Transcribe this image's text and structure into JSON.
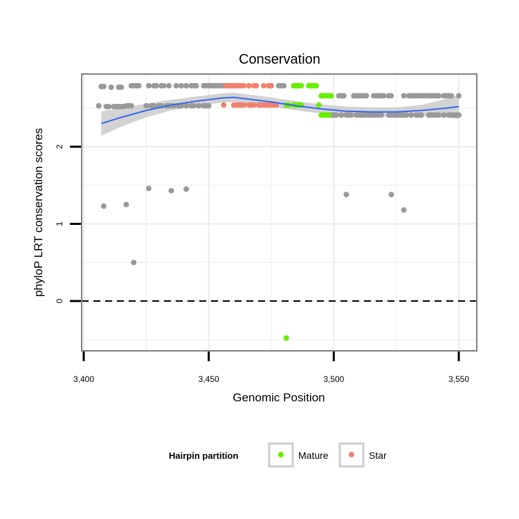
{
  "chart_data": {
    "type": "scatter",
    "title": "Conservation",
    "xlabel": "Genomic Position",
    "ylabel": "phyloP LRT conservation scores",
    "xlim": [
      3400,
      3555
    ],
    "ylim": [
      -0.62,
      3.0
    ],
    "x_ticks": [
      {
        "value": 3400,
        "label": "3,400"
      },
      {
        "value": 3450,
        "label": "3,450"
      },
      {
        "value": 3500,
        "label": "3,500"
      },
      {
        "value": 3550,
        "label": "3,550"
      }
    ],
    "y_ticks": [
      {
        "value": 0,
        "label": "0"
      },
      {
        "value": 1,
        "label": "1"
      },
      {
        "value": 2,
        "label": "2"
      }
    ],
    "grid": true,
    "reference_line": {
      "y": 0,
      "style": "dashed"
    },
    "legend": {
      "title": "Hairpin partition",
      "position": "bottom",
      "items": [
        {
          "label": "Mature",
          "color": "#66ee00"
        },
        {
          "label": "Star",
          "color": "#f08070"
        }
      ]
    },
    "colors": {
      "other": "#999999",
      "Mature": "#66ee00",
      "Star": "#f08070",
      "smooth": "#3366ee",
      "band": "#c8c8c8"
    },
    "series": [
      {
        "group": "other",
        "points": [
          [
            3407,
            2.78
          ],
          [
            3408,
            2.78
          ],
          [
            3411,
            2.77
          ],
          [
            3414,
            2.77
          ],
          [
            3415,
            2.77
          ],
          [
            3419,
            2.79
          ],
          [
            3420,
            2.79
          ],
          [
            3421,
            2.79
          ],
          [
            3422,
            2.79
          ],
          [
            3426,
            2.79
          ],
          [
            3428,
            2.79
          ],
          [
            3429,
            2.79
          ],
          [
            3431,
            2.79
          ],
          [
            3432,
            2.79
          ],
          [
            3434,
            2.79
          ],
          [
            3437,
            2.79
          ],
          [
            3439,
            2.79
          ],
          [
            3441,
            2.79
          ],
          [
            3443,
            2.79
          ],
          [
            3444,
            2.79
          ],
          [
            3445,
            2.79
          ],
          [
            3448,
            2.79
          ],
          [
            3449,
            2.79
          ],
          [
            3450,
            2.79
          ],
          [
            3451,
            2.79
          ],
          [
            3452,
            2.79
          ],
          [
            3453,
            2.79
          ],
          [
            3454,
            2.79
          ],
          [
            3455,
            2.79
          ],
          [
            3456,
            2.79
          ],
          [
            3478,
            2.79
          ],
          [
            3479,
            2.79
          ],
          [
            3480,
            2.79
          ],
          [
            3406,
            2.53
          ],
          [
            3409,
            2.52
          ],
          [
            3410,
            2.52
          ],
          [
            3412,
            2.52
          ],
          [
            3413,
            2.52
          ],
          [
            3414,
            2.52
          ],
          [
            3415,
            2.52
          ],
          [
            3416,
            2.52
          ],
          [
            3417,
            2.53
          ],
          [
            3418,
            2.53
          ],
          [
            3419,
            2.53
          ],
          [
            3425,
            2.53
          ],
          [
            3427,
            2.53
          ],
          [
            3428,
            2.53
          ],
          [
            3430,
            2.53
          ],
          [
            3431,
            2.53
          ],
          [
            3433,
            2.53
          ],
          [
            3434,
            2.53
          ],
          [
            3435,
            2.53
          ],
          [
            3436,
            2.53
          ],
          [
            3438,
            2.53
          ],
          [
            3439,
            2.53
          ],
          [
            3441,
            2.53
          ],
          [
            3443,
            2.53
          ],
          [
            3444,
            2.53
          ],
          [
            3446,
            2.53
          ],
          [
            3448,
            2.53
          ],
          [
            3449,
            2.53
          ],
          [
            3450,
            2.53
          ],
          [
            3502,
            2.66
          ],
          [
            3503,
            2.66
          ],
          [
            3504,
            2.66
          ],
          [
            3508,
            2.66
          ],
          [
            3509,
            2.66
          ],
          [
            3510,
            2.66
          ],
          [
            3511,
            2.66
          ],
          [
            3512,
            2.66
          ],
          [
            3513,
            2.66
          ],
          [
            3516,
            2.66
          ],
          [
            3517,
            2.66
          ],
          [
            3518,
            2.66
          ],
          [
            3519,
            2.66
          ],
          [
            3520,
            2.66
          ],
          [
            3522,
            2.66
          ],
          [
            3523,
            2.66
          ],
          [
            3528,
            2.66
          ],
          [
            3530,
            2.66
          ],
          [
            3531,
            2.66
          ],
          [
            3532,
            2.66
          ],
          [
            3533,
            2.66
          ],
          [
            3534,
            2.66
          ],
          [
            3535,
            2.66
          ],
          [
            3536,
            2.66
          ],
          [
            3537,
            2.66
          ],
          [
            3538,
            2.66
          ],
          [
            3539,
            2.66
          ],
          [
            3540,
            2.66
          ],
          [
            3541,
            2.66
          ],
          [
            3542,
            2.66
          ],
          [
            3544,
            2.66
          ],
          [
            3545,
            2.66
          ],
          [
            3546,
            2.66
          ],
          [
            3547,
            2.66
          ],
          [
            3550,
            2.66
          ],
          [
            3497,
            2.41
          ],
          [
            3499,
            2.41
          ],
          [
            3500,
            2.41
          ],
          [
            3501,
            2.41
          ],
          [
            3503,
            2.41
          ],
          [
            3505,
            2.41
          ],
          [
            3506,
            2.41
          ],
          [
            3507,
            2.41
          ],
          [
            3509,
            2.41
          ],
          [
            3510,
            2.41
          ],
          [
            3511,
            2.41
          ],
          [
            3512,
            2.41
          ],
          [
            3513,
            2.41
          ],
          [
            3514,
            2.41
          ],
          [
            3515,
            2.41
          ],
          [
            3516,
            2.41
          ],
          [
            3517,
            2.41
          ],
          [
            3518,
            2.41
          ],
          [
            3519,
            2.41
          ],
          [
            3522,
            2.41
          ],
          [
            3523,
            2.41
          ],
          [
            3524,
            2.41
          ],
          [
            3525,
            2.41
          ],
          [
            3526,
            2.41
          ],
          [
            3527,
            2.41
          ],
          [
            3528,
            2.41
          ],
          [
            3529,
            2.41
          ],
          [
            3531,
            2.41
          ],
          [
            3533,
            2.41
          ],
          [
            3534,
            2.41
          ],
          [
            3535,
            2.41
          ],
          [
            3538,
            2.41
          ],
          [
            3539,
            2.41
          ],
          [
            3540,
            2.41
          ],
          [
            3541,
            2.41
          ],
          [
            3542,
            2.41
          ],
          [
            3544,
            2.41
          ],
          [
            3546,
            2.41
          ],
          [
            3547,
            2.41
          ],
          [
            3548,
            2.41
          ],
          [
            3549,
            2.41
          ],
          [
            3550,
            2.41
          ],
          [
            3408,
            1.23
          ],
          [
            3417,
            1.25
          ],
          [
            3420,
            0.5
          ],
          [
            3426,
            1.46
          ],
          [
            3435,
            1.43
          ],
          [
            3441,
            1.45
          ],
          [
            3505,
            1.38
          ],
          [
            3523,
            1.38
          ],
          [
            3528,
            1.18
          ]
        ]
      },
      {
        "group": "Star",
        "points": [
          [
            3457,
            2.79
          ],
          [
            3458,
            2.79
          ],
          [
            3459,
            2.79
          ],
          [
            3460,
            2.79
          ],
          [
            3461,
            2.79
          ],
          [
            3462,
            2.79
          ],
          [
            3463,
            2.79
          ],
          [
            3464,
            2.79
          ],
          [
            3466,
            2.79
          ],
          [
            3468,
            2.79
          ],
          [
            3469,
            2.79
          ],
          [
            3472,
            2.79
          ],
          [
            3474,
            2.79
          ],
          [
            3475,
            2.79
          ],
          [
            3456,
            2.54
          ],
          [
            3460,
            2.54
          ],
          [
            3461,
            2.54
          ],
          [
            3462,
            2.54
          ],
          [
            3463,
            2.54
          ],
          [
            3464,
            2.54
          ],
          [
            3466,
            2.54
          ],
          [
            3467,
            2.54
          ],
          [
            3468,
            2.54
          ],
          [
            3470,
            2.54
          ],
          [
            3471,
            2.54
          ],
          [
            3472,
            2.54
          ],
          [
            3473,
            2.54
          ],
          [
            3474,
            2.54
          ],
          [
            3475,
            2.54
          ],
          [
            3476,
            2.54
          ],
          [
            3477,
            2.54
          ]
        ]
      },
      {
        "group": "Mature",
        "points": [
          [
            3484,
            2.79
          ],
          [
            3485,
            2.79
          ],
          [
            3486,
            2.79
          ],
          [
            3487,
            2.79
          ],
          [
            3490,
            2.79
          ],
          [
            3491,
            2.79
          ],
          [
            3492,
            2.79
          ],
          [
            3493,
            2.79
          ],
          [
            3495,
            2.66
          ],
          [
            3496,
            2.66
          ],
          [
            3497,
            2.66
          ],
          [
            3498,
            2.66
          ],
          [
            3499,
            2.66
          ],
          [
            3481,
            2.54
          ],
          [
            3482,
            2.54
          ],
          [
            3484,
            2.54
          ],
          [
            3485,
            2.54
          ],
          [
            3486,
            2.54
          ],
          [
            3487,
            2.54
          ],
          [
            3494,
            2.54
          ],
          [
            3495,
            2.41
          ],
          [
            3496,
            2.41
          ],
          [
            3497,
            2.41
          ],
          [
            3498,
            2.41
          ],
          [
            3481,
            -0.48
          ]
        ]
      }
    ],
    "smooth": {
      "x": [
        3407,
        3415,
        3425,
        3435,
        3445,
        3455,
        3460,
        3465,
        3475,
        3485,
        3495,
        3505,
        3515,
        3525,
        3535,
        3545,
        3550
      ],
      "y": [
        2.3,
        2.38,
        2.47,
        2.54,
        2.59,
        2.63,
        2.64,
        2.62,
        2.58,
        2.53,
        2.49,
        2.46,
        2.45,
        2.45,
        2.47,
        2.5,
        2.52
      ],
      "band_half_width": [
        0.16,
        0.12,
        0.09,
        0.07,
        0.06,
        0.06,
        0.06,
        0.06,
        0.06,
        0.06,
        0.06,
        0.06,
        0.06,
        0.06,
        0.07,
        0.12,
        0.16
      ]
    }
  }
}
